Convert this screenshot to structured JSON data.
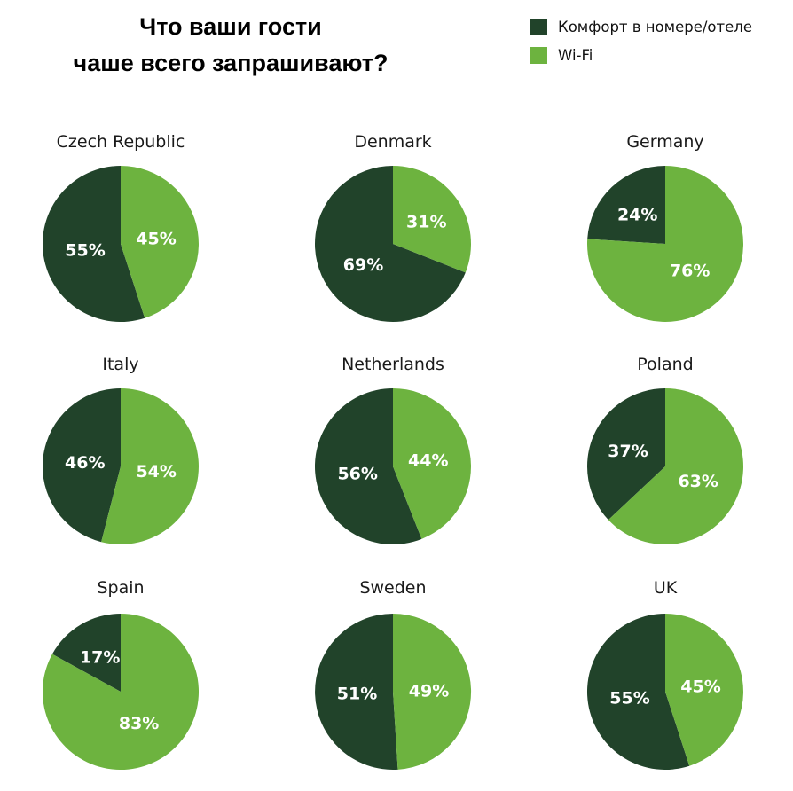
{
  "title": {
    "line1": "Что ваши гости",
    "line2": "чаше всего запрашивают?"
  },
  "legend": [
    {
      "label": "Комфорт в номере/отеле",
      "color": "#21432a"
    },
    {
      "label": "Wi-Fi",
      "color": "#6db33f"
    }
  ],
  "chart_data": {
    "type": "pie",
    "title": "Что ваши гости чаше всего запрашивают?",
    "series_names": [
      "Комфорт в номере/отеле",
      "Wi-Fi"
    ],
    "colors": [
      "#21432a",
      "#6db33f"
    ],
    "charts": [
      {
        "country": "Czech Republic",
        "values": [
          55,
          45
        ]
      },
      {
        "country": "Denmark",
        "values": [
          69,
          31
        ]
      },
      {
        "country": "Germany",
        "values": [
          24,
          76
        ]
      },
      {
        "country": "Italy",
        "values": [
          46,
          54
        ]
      },
      {
        "country": "Netherlands",
        "values": [
          56,
          44
        ]
      },
      {
        "country": "Poland",
        "values": [
          37,
          63
        ]
      },
      {
        "country": "Spain",
        "values": [
          17,
          83
        ]
      },
      {
        "country": "Sweden",
        "values": [
          51,
          49
        ]
      },
      {
        "country": "UK",
        "values": [
          55,
          45
        ]
      }
    ]
  }
}
